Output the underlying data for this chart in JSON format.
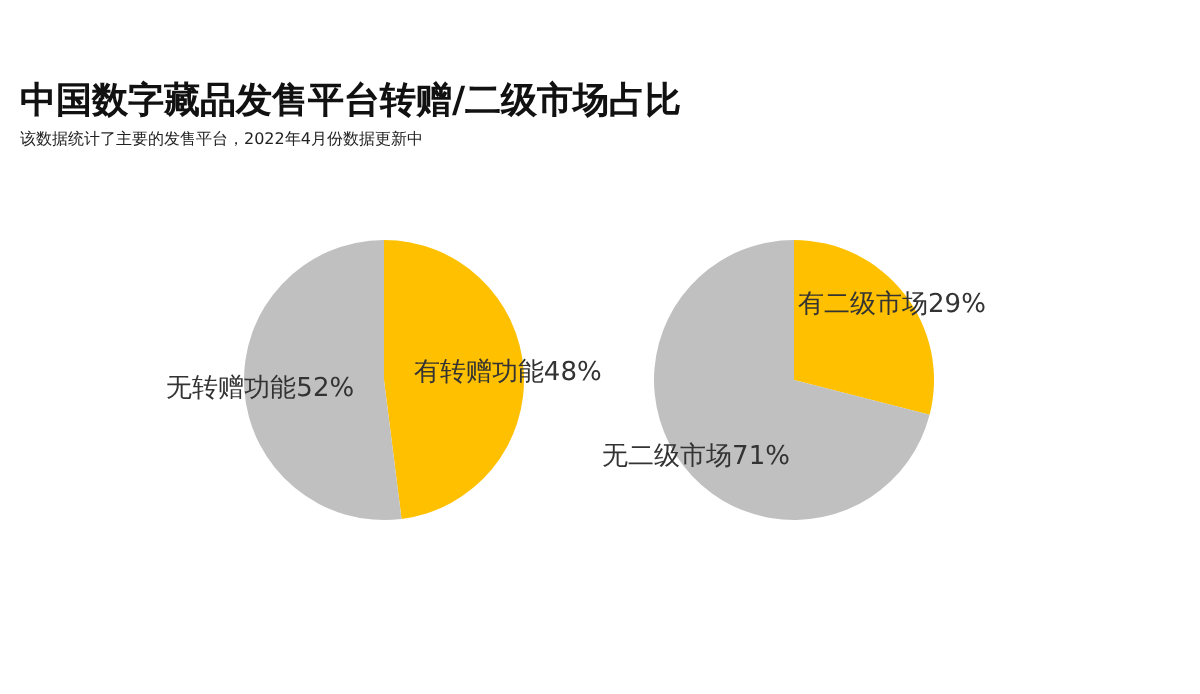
{
  "chart_data": [
    {
      "type": "pie",
      "title": "中国数字藏品发售平台转赠/二级市场占比",
      "subtitle": "该数据统计了主要的发售平台，2022年4月份数据更新中",
      "categories": [
        "有转赠功能48%",
        "无转赠功能52%"
      ],
      "values": [
        48,
        52
      ],
      "colors": [
        "#ffc000",
        "#c0c0c0"
      ]
    },
    {
      "type": "pie",
      "categories": [
        "有二级市场29%",
        "无二级市场71%"
      ],
      "values": [
        29,
        71
      ],
      "colors": [
        "#ffc000",
        "#c0c0c0"
      ]
    }
  ]
}
